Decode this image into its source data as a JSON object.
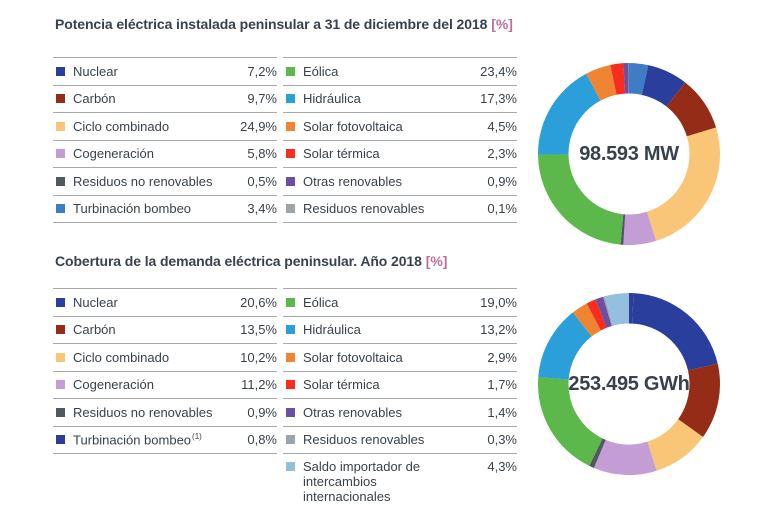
{
  "accent": {
    "suffix_pink": "#C06E9E",
    "text_dark": "#39424C",
    "rule_gray": "#A7ABAE"
  },
  "sections": [
    {
      "title": "Potencia eléctrica instalada peninsular a 31 de diciembre del 2018",
      "suffix": "[%]",
      "legend_left": {
        "rows": [
          {
            "label": "Nuclear",
            "value": "7,2%",
            "color": "#2A3F9D"
          },
          {
            "label": "Carbón",
            "value": "9,7%",
            "color": "#952C18"
          },
          {
            "label": "Ciclo combinado",
            "value": "24,9%",
            "color": "#F9C678"
          },
          {
            "label": "Cogeneración",
            "value": "5,8%",
            "color": "#C49DD6"
          },
          {
            "label": "Residuos no renovables",
            "value": "0,5%",
            "color": "#50595C"
          },
          {
            "label": "Turbinación bombeo",
            "value": "3,4%",
            "color": "#3E7DC5"
          }
        ]
      },
      "legend_right": {
        "rows": [
          {
            "label": "Eólica",
            "value": "23,4%",
            "color": "#5CB84B"
          },
          {
            "label": "Hidráulica",
            "value": "17,3%",
            "color": "#2A9FDA"
          },
          {
            "label": "Solar fotovoltaica",
            "value": "4,5%",
            "color": "#EF8532"
          },
          {
            "label": "Solar térmica",
            "value": "2,3%",
            "color": "#F92D1D"
          },
          {
            "label": "Otras renovables",
            "value": "0,9%",
            "color": "#6B4FA2"
          },
          {
            "label": "Residuos renovables",
            "value": "0,1%",
            "color": "#9DA5AA"
          }
        ]
      }
    },
    {
      "title": "Cobertura de la demanda eléctrica peninsular. Año 2018",
      "suffix": "[%]",
      "legend_left": {
        "rows": [
          {
            "label": "Nuclear",
            "value": "20,6%",
            "color": "#2A3F9D"
          },
          {
            "label": "Carbón",
            "value": "13,5%",
            "color": "#952C18"
          },
          {
            "label": "Ciclo combinado",
            "value": "10,2%",
            "color": "#F9C678"
          },
          {
            "label": "Cogeneración",
            "value": "11,2%",
            "color": "#C49DD6"
          },
          {
            "label": "Residuos no renovables",
            "value": "0,9%",
            "color": "#50595C"
          },
          {
            "label": "Turbinación bombeo",
            "sup": "(1)",
            "value": "0,8%",
            "color": "#2E3D96"
          }
        ]
      },
      "legend_right": {
        "rows": [
          {
            "label": "Eólica",
            "value": "19,0%",
            "color": "#5CB84B"
          },
          {
            "label": "Hidráulica",
            "value": "13,2%",
            "color": "#2A9FDA"
          },
          {
            "label": "Solar fotovoltaica",
            "value": "2,9%",
            "color": "#EF8532"
          },
          {
            "label": "Solar térmica",
            "value": "1,7%",
            "color": "#F92D1D"
          },
          {
            "label": "Otras renovables",
            "value": "1,4%",
            "color": "#6B4FA2"
          },
          {
            "label": "Residuos renovables",
            "value": "0,3%",
            "color": "#9DA5AA"
          },
          {
            "label": "Saldo importador de intercambios internacionales",
            "value": "4,3%",
            "color": "#95BFDF",
            "multiline": true
          }
        ]
      }
    }
  ],
  "chart_data": [
    {
      "type": "pie",
      "subtype": "donut",
      "title": "Potencia eléctrica instalada peninsular a 31 de diciembre del 2018 [%]",
      "center_label": "98.593 MW",
      "units": "percent",
      "start_angle_deg": 0,
      "legend_position": "left",
      "segments": [
        {
          "label": "Turbinación bombeo",
          "value": 3.4,
          "color": "#3E7DC5"
        },
        {
          "label": "Nuclear",
          "value": 7.2,
          "color": "#2A3F9D"
        },
        {
          "label": "Carbón",
          "value": 9.7,
          "color": "#952C18"
        },
        {
          "label": "Ciclo combinado",
          "value": 24.9,
          "color": "#F9C678"
        },
        {
          "label": "Cogeneración",
          "value": 5.8,
          "color": "#C49DD6"
        },
        {
          "label": "Residuos no renovables",
          "value": 0.5,
          "color": "#50595C"
        },
        {
          "label": "Eólica",
          "value": 23.4,
          "color": "#5CB84B"
        },
        {
          "label": "Hidráulica",
          "value": 17.3,
          "color": "#2A9FDA"
        },
        {
          "label": "Solar fotovoltaica",
          "value": 4.5,
          "color": "#EF8532"
        },
        {
          "label": "Solar térmica",
          "value": 2.3,
          "color": "#F92D1D"
        },
        {
          "label": "Otras renovables",
          "value": 0.9,
          "color": "#6B4FA2"
        },
        {
          "label": "Residuos renovables",
          "value": 0.1,
          "color": "#9DA5AA"
        }
      ]
    },
    {
      "type": "pie",
      "subtype": "donut",
      "title": "Cobertura de la demanda eléctrica peninsular. Año 2018 [%]",
      "center_label": "253.495 GWh",
      "units": "percent",
      "start_angle_deg": 0,
      "legend_position": "left",
      "segments": [
        {
          "label": "Turbinación bombeo",
          "value": 0.8,
          "color": "#2E3D96"
        },
        {
          "label": "Nuclear",
          "value": 20.6,
          "color": "#2A3F9D"
        },
        {
          "label": "Carbón",
          "value": 13.5,
          "color": "#952C18"
        },
        {
          "label": "Ciclo combinado",
          "value": 10.2,
          "color": "#F9C678"
        },
        {
          "label": "Cogeneración",
          "value": 11.2,
          "color": "#C49DD6"
        },
        {
          "label": "Residuos no renovables",
          "value": 0.9,
          "color": "#50595C"
        },
        {
          "label": "Eólica",
          "value": 19.0,
          "color": "#5CB84B"
        },
        {
          "label": "Hidráulica",
          "value": 13.2,
          "color": "#2A9FDA"
        },
        {
          "label": "Solar fotovoltaica",
          "value": 2.9,
          "color": "#EF8532"
        },
        {
          "label": "Solar térmica",
          "value": 1.7,
          "color": "#F92D1D"
        },
        {
          "label": "Otras renovables",
          "value": 1.4,
          "color": "#6B4FA2"
        },
        {
          "label": "Residuos renovables",
          "value": 0.3,
          "color": "#9DA5AA"
        },
        {
          "label": "Saldo importador de intercambios internacionales",
          "value": 4.3,
          "color": "#95BFDF"
        }
      ]
    }
  ]
}
